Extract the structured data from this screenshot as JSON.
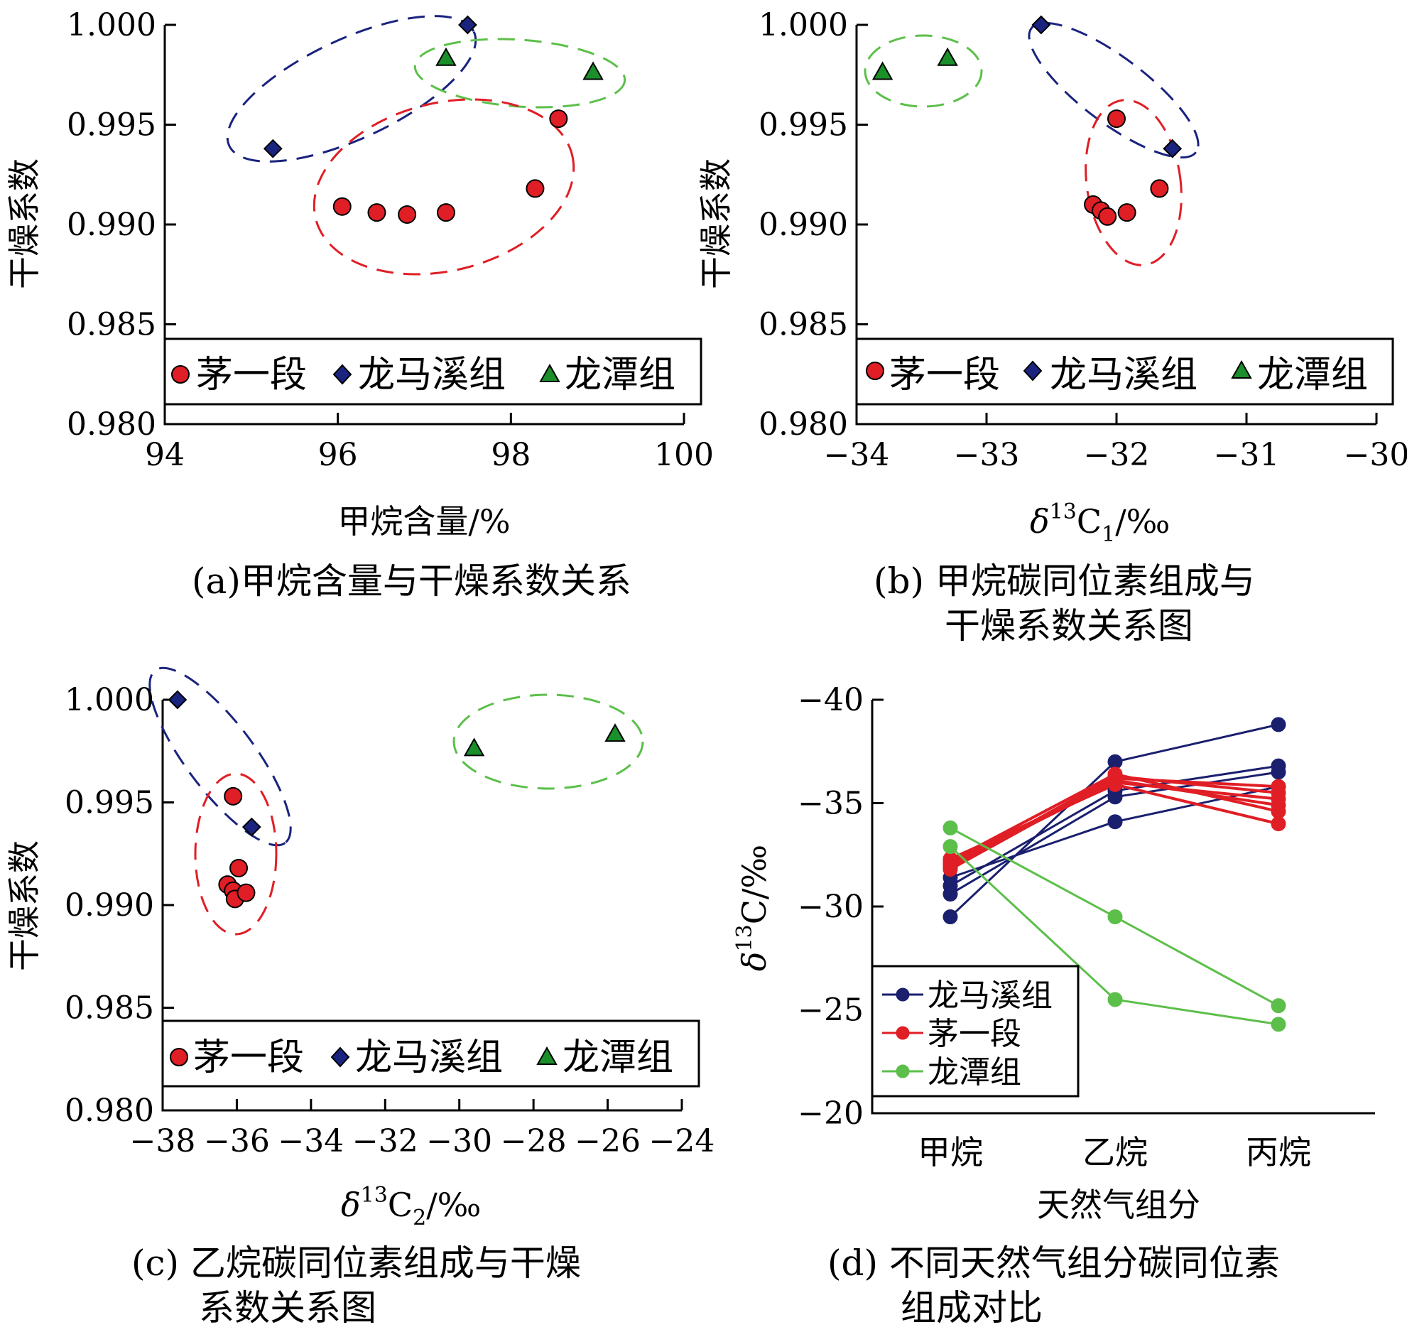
{
  "series_names": [
    "茅一段",
    "龙马溪组",
    "龙潭组"
  ],
  "colors": {
    "maoyi": "#e01e25",
    "longmaxi_marker": "#1a237e",
    "longtan_marker": "#1a8f2a",
    "ellipse_blue": "#1a237e",
    "ellipse_red": "#e01e25",
    "ellipse_green": "#5cbf4a",
    "d_longmaxi": "#1a1f6e",
    "d_maoyi": "#e01e25",
    "d_longtan": "#5cbf4a"
  },
  "chart_data": [
    {
      "id": "a",
      "type": "scatter",
      "caption": "(a)甲烷含量与干燥系数关系",
      "xlabel": "甲烷含量/%",
      "ylabel": "干燥系数",
      "xlim": [
        94,
        100
      ],
      "ylim": [
        0.98,
        1.0
      ],
      "xticks": [
        "94",
        "96",
        "98",
        "100"
      ],
      "yticks": [
        "0.980",
        "0.985",
        "0.990",
        "0.995",
        "1.000"
      ],
      "series": [
        {
          "name": "茅一段",
          "marker": "circle",
          "points": [
            [
              96.05,
              0.9909
            ],
            [
              96.45,
              0.9906
            ],
            [
              96.8,
              0.9905
            ],
            [
              97.25,
              0.9906
            ],
            [
              98.28,
              0.9918
            ],
            [
              98.55,
              0.9953
            ]
          ]
        },
        {
          "name": "龙马溪组",
          "marker": "diamond",
          "points": [
            [
              95.25,
              0.9938
            ],
            [
              97.5,
              1.0
            ]
          ]
        },
        {
          "name": "龙潭组",
          "marker": "triangle",
          "points": [
            [
              97.25,
              0.9983
            ],
            [
              98.95,
              0.9976
            ]
          ]
        }
      ]
    },
    {
      "id": "b",
      "type": "scatter",
      "caption": "(b) 甲烷碳同位素组成与干燥系数关系图",
      "xlabel": "δ13C1/‰",
      "ylabel": "干燥系数",
      "xlim": [
        -34,
        -30
      ],
      "ylim": [
        0.98,
        1.0
      ],
      "xticks": [
        "−34",
        "−33",
        "−32",
        "−31",
        "−30"
      ],
      "yticks": [
        "0.980",
        "0.985",
        "0.990",
        "0.995",
        "1.000"
      ],
      "series": [
        {
          "name": "茅一段",
          "marker": "circle",
          "points": [
            [
              -32.18,
              0.991
            ],
            [
              -32.12,
              0.9907
            ],
            [
              -32.07,
              0.9904
            ],
            [
              -31.92,
              0.9906
            ],
            [
              -32.0,
              0.9953
            ],
            [
              -31.67,
              0.9918
            ]
          ]
        },
        {
          "name": "龙马溪组",
          "marker": "diamond",
          "points": [
            [
              -32.58,
              1.0
            ],
            [
              -31.57,
              0.9938
            ]
          ]
        },
        {
          "name": "龙潭组",
          "marker": "triangle",
          "points": [
            [
              -33.8,
              0.9976
            ],
            [
              -33.3,
              0.9983
            ]
          ]
        }
      ]
    },
    {
      "id": "c",
      "type": "scatter",
      "caption": "(c) 乙烷碳同位素组成与干燥系数关系图",
      "xlabel": "δ13C2/‰",
      "ylabel": "干燥系数",
      "xlim": [
        -38,
        -24
      ],
      "ylim": [
        0.98,
        1.0
      ],
      "xticks": [
        "−38",
        "−36",
        "−34",
        "−32",
        "−30",
        "−28",
        "−26",
        "−24"
      ],
      "yticks": [
        "0.980",
        "0.985",
        "0.990",
        "0.995",
        "1.000"
      ],
      "series": [
        {
          "name": "茅一段",
          "marker": "circle",
          "points": [
            [
              -36.25,
              0.991
            ],
            [
              -36.1,
              0.9907
            ],
            [
              -36.05,
              0.9903
            ],
            [
              -35.95,
              0.9918
            ],
            [
              -35.75,
              0.9906
            ],
            [
              -36.1,
              0.9953
            ]
          ]
        },
        {
          "name": "龙马溪组",
          "marker": "diamond",
          "points": [
            [
              -37.6,
              1.0
            ],
            [
              -35.6,
              0.9938
            ]
          ]
        },
        {
          "name": "龙潭组",
          "marker": "triangle",
          "points": [
            [
              -29.6,
              0.9976
            ],
            [
              -25.8,
              0.9983
            ]
          ]
        }
      ]
    },
    {
      "id": "d",
      "type": "line",
      "caption": "(d) 不同天然气组分碳同位素组成对比",
      "xlabel": "天然气组分",
      "ylabel": "δ13C/‰",
      "categories": [
        "甲烷",
        "乙烷",
        "丙烷"
      ],
      "ylim": [
        -40,
        -20
      ],
      "yticks": [
        "−40",
        "−35",
        "−30",
        "−25",
        "−20"
      ],
      "series": [
        {
          "name": "龙马溪组",
          "lines": [
            [
              -29.5,
              -37.0,
              -38.8
            ],
            [
              -30.6,
              -35.3,
              -36.5
            ],
            [
              -31.0,
              -35.6,
              -36.8
            ],
            [
              -31.4,
              -34.1,
              -35.8
            ]
          ]
        },
        {
          "name": "茅一段",
          "lines": [
            [
              -31.8,
              -36.2,
              -35.8
            ],
            [
              -31.9,
              -36.3,
              -35.5
            ],
            [
              -32.0,
              -36.0,
              -35.2
            ],
            [
              -32.1,
              -36.1,
              -34.9
            ],
            [
              -32.2,
              -36.4,
              -34.6
            ],
            [
              -32.3,
              -35.9,
              -34.0
            ]
          ]
        },
        {
          "name": "龙潭组",
          "lines": [
            [
              -33.8,
              -29.5,
              -25.2
            ],
            [
              -32.9,
              -25.5,
              -24.3
            ]
          ]
        }
      ]
    }
  ]
}
